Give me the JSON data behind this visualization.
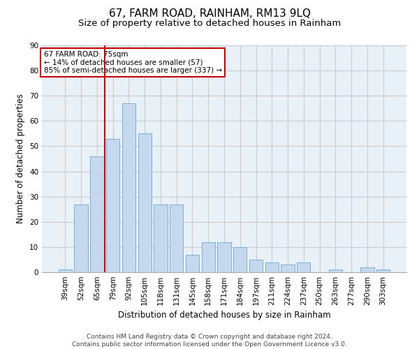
{
  "title": "67, FARM ROAD, RAINHAM, RM13 9LQ",
  "subtitle": "Size of property relative to detached houses in Rainham",
  "xlabel": "Distribution of detached houses by size in Rainham",
  "ylabel": "Number of detached properties",
  "categories": [
    "39sqm",
    "52sqm",
    "65sqm",
    "79sqm",
    "92sqm",
    "105sqm",
    "118sqm",
    "131sqm",
    "145sqm",
    "158sqm",
    "171sqm",
    "184sqm",
    "197sqm",
    "211sqm",
    "224sqm",
    "237sqm",
    "250sqm",
    "263sqm",
    "277sqm",
    "290sqm",
    "303sqm"
  ],
  "values": [
    1,
    27,
    46,
    53,
    67,
    55,
    27,
    27,
    7,
    12,
    12,
    10,
    5,
    4,
    3,
    4,
    0,
    1,
    0,
    2,
    1
  ],
  "bar_color": "#c5d8ed",
  "bar_edge_color": "#7aafd4",
  "vline_x_index": 2.5,
  "vline_color": "#cc0000",
  "annotation_box_color": "#ffffff",
  "annotation_box_edge": "#cc0000",
  "property_label": "67 FARM ROAD: 75sqm",
  "annotation_line1": "← 14% of detached houses are smaller (57)",
  "annotation_line2": "85% of semi-detached houses are larger (337) →",
  "ylim": [
    0,
    90
  ],
  "yticks": [
    0,
    10,
    20,
    30,
    40,
    50,
    60,
    70,
    80,
    90
  ],
  "grid_color": "#cccccc",
  "bg_color": "#e8f0f8",
  "footer": "Contains HM Land Registry data © Crown copyright and database right 2024.\nContains public sector information licensed under the Open Government Licence v3.0.",
  "title_fontsize": 11,
  "subtitle_fontsize": 9.5,
  "label_fontsize": 8.5,
  "tick_fontsize": 7.5,
  "footer_fontsize": 6.5
}
